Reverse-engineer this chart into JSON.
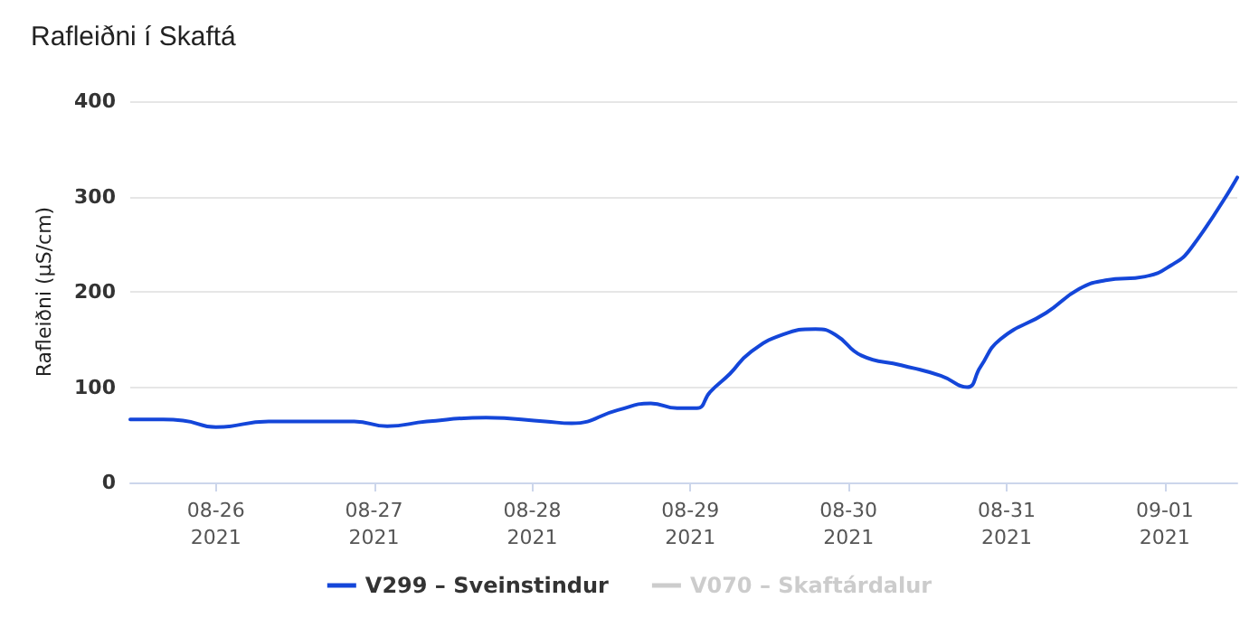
{
  "chart_data": {
    "type": "line",
    "title": "Rafleiðni í Skaftá",
    "ylabel": "Rafleiðni (µS/cm)",
    "x": [
      "2021-08-25T11:00",
      "2021-08-25T16:00",
      "2021-08-25T19:00",
      "2021-08-26T00:00",
      "2021-08-26T08:00",
      "2021-08-26T15:00",
      "2021-08-26T21:00",
      "2021-08-27T02:00",
      "2021-08-27T08:00",
      "2021-08-27T17:00",
      "2021-08-28T02:00",
      "2021-08-28T06:00",
      "2021-08-28T13:00",
      "2021-08-28T18:00",
      "2021-08-28T22:00",
      "2021-08-29T01:00",
      "2021-08-29T03:00",
      "2021-08-29T06:00",
      "2021-08-29T09:00",
      "2021-08-29T14:00",
      "2021-08-29T19:00",
      "2021-08-29T22:00",
      "2021-08-30T02:00",
      "2021-08-30T08:00",
      "2021-08-30T14:00",
      "2021-08-30T18:00",
      "2021-08-30T20:00",
      "2021-08-30T23:00",
      "2021-08-31T06:00",
      "2021-08-31T11:00",
      "2021-08-31T15:00",
      "2021-08-31T21:00",
      "2021-09-01T01:00",
      "2021-09-01T04:00",
      "2021-09-01T11:00"
    ],
    "series": [
      {
        "name": "V299 – Sveinstindur",
        "color": "#1446d9",
        "values": [
          66,
          66,
          65,
          58,
          64,
          64,
          64,
          59,
          64,
          68,
          64,
          62,
          76,
          83,
          78,
          78,
          95,
          114,
          136,
          155,
          161,
          155,
          133,
          123,
          112,
          100,
          121,
          150,
          178,
          203,
          212,
          216,
          228,
          246,
          320
        ]
      },
      {
        "name": "V070 – Skaftárdalur",
        "color": "#cccccc",
        "values": [
          null,
          null,
          null,
          null,
          null,
          null,
          null,
          null,
          null,
          null,
          null,
          null,
          null,
          null,
          null,
          null,
          null,
          null,
          null,
          null,
          null,
          null,
          null,
          null,
          null,
          null,
          null,
          null,
          null,
          null,
          null,
          null,
          null,
          null,
          null
        ]
      }
    ],
    "xlim": [
      "2021-08-25T11:00",
      "2021-09-01T11:00"
    ],
    "xticks": [
      {
        "value": "2021-08-26",
        "label": "08-26\n2021"
      },
      {
        "value": "2021-08-27",
        "label": "08-27\n2021"
      },
      {
        "value": "2021-08-28",
        "label": "08-28\n2021"
      },
      {
        "value": "2021-08-29",
        "label": "08-29\n2021"
      },
      {
        "value": "2021-08-30",
        "label": "08-30\n2021"
      },
      {
        "value": "2021-08-31",
        "label": "08-31\n2021"
      },
      {
        "value": "2021-09-01",
        "label": "09-01\n2021"
      }
    ],
    "ylim": [
      0,
      400
    ],
    "yticks": [
      0,
      100,
      200,
      300,
      400
    ],
    "grid": "y",
    "legend": "bottom",
    "marker": "none",
    "line_style": "solid"
  }
}
